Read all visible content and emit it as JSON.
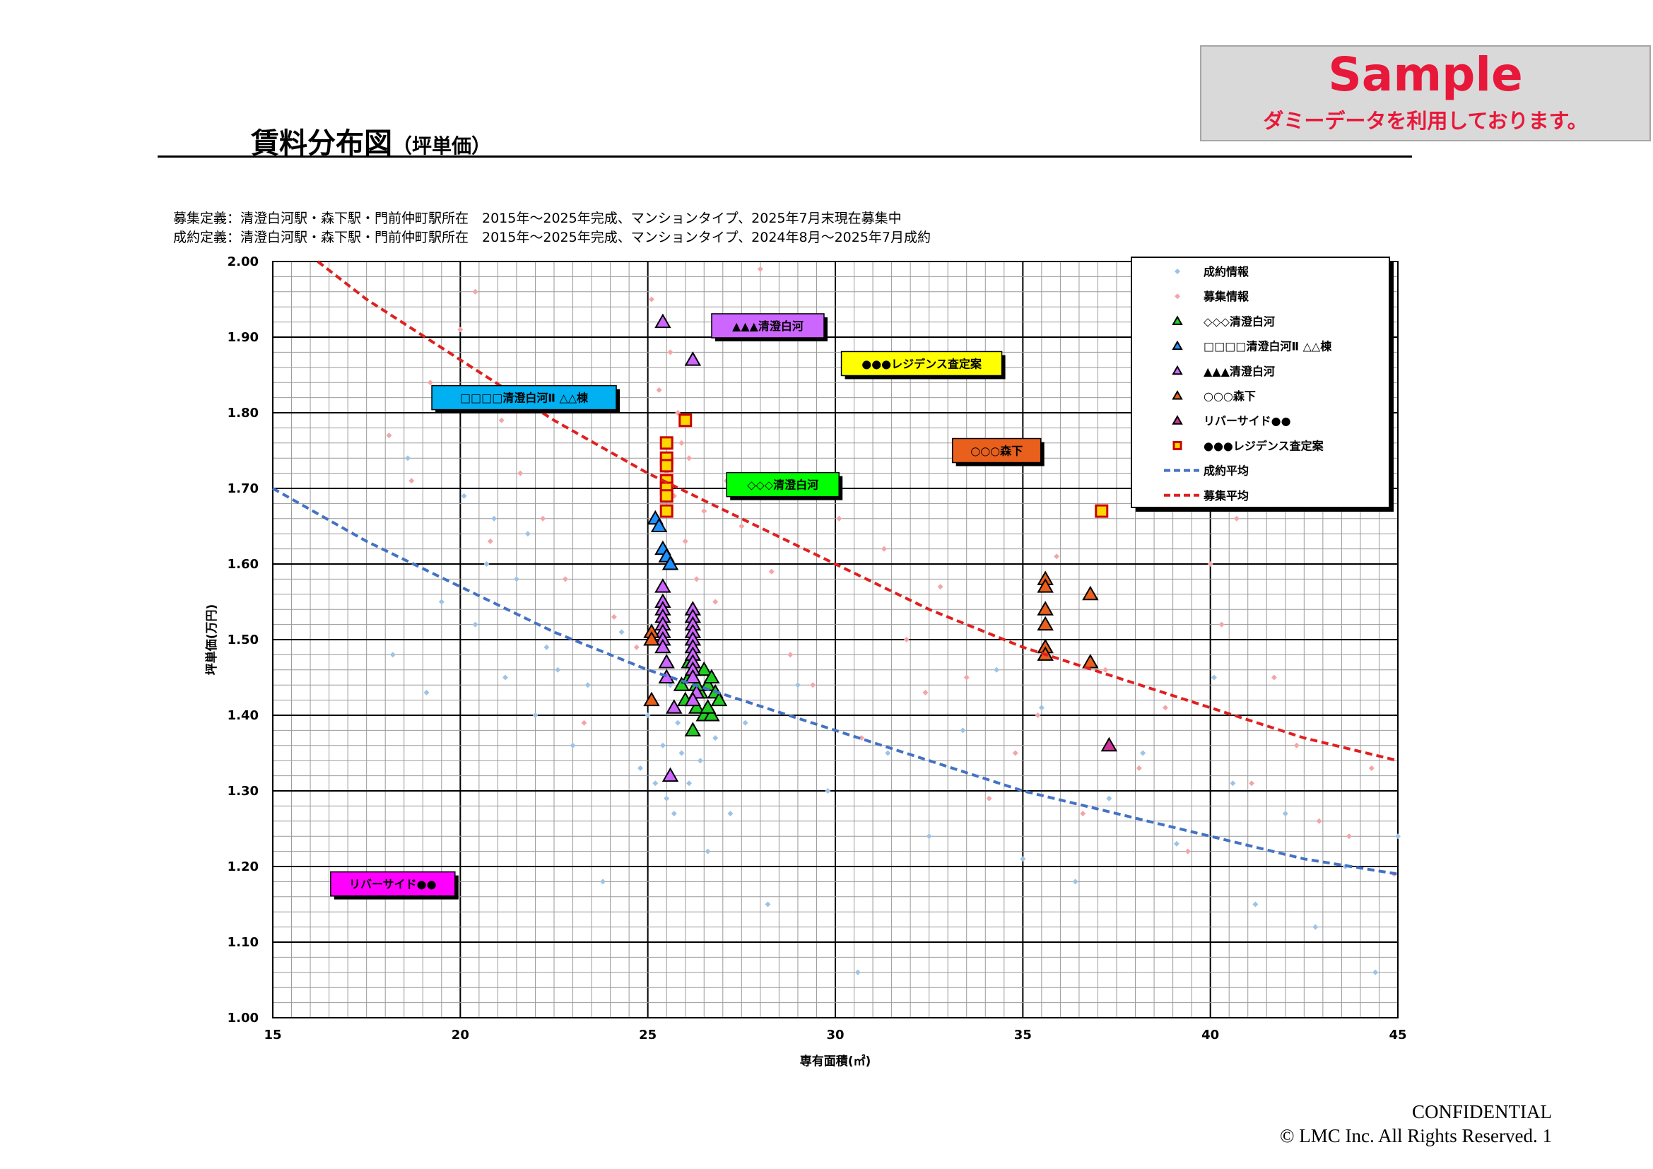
{
  "page": {
    "title": "賃料分布図",
    "title_sub": "（坪単価）",
    "definition_recruit": "募集定義：清澄白河駅・森下駅・門前仲町駅所在　2015年～2025年完成、マンションタイプ、2025年7月末現在募集中",
    "definition_contract": "成約定義：清澄白河駅・森下駅・門前仲町駅所在　2015年～2025年完成、マンションタイプ、2024年8月～2025年7月成約",
    "sample_title": "Sample",
    "sample_note": "ダミーデータを利用しております。",
    "footer_confidential": "CONFIDENTIAL",
    "footer_copyright": "© LMC Inc. All Rights Reserved.  1"
  },
  "chart_data": {
    "type": "scatter",
    "title": "",
    "xlabel": "専有面積(㎡)",
    "ylabel": "坪単価(万円)",
    "xlim": [
      15,
      45
    ],
    "ylim": [
      1.0,
      2.0
    ],
    "xticks": [
      "15",
      "20",
      "25",
      "30",
      "35",
      "40",
      "45"
    ],
    "yticks": [
      "1.00",
      "1.10",
      "1.20",
      "1.30",
      "1.40",
      "1.50",
      "1.60",
      "1.70",
      "1.80",
      "1.90",
      "2.00"
    ],
    "grid": true,
    "legend_position": "top-right",
    "series": [
      {
        "name": "成約情報",
        "marker": "diamond",
        "color": "#9dc3e6",
        "x": [
          18.2,
          18.6,
          19.1,
          19.5,
          20.1,
          20.4,
          20.7,
          20.9,
          21.2,
          21.5,
          21.8,
          22.0,
          22.3,
          22.6,
          23.0,
          23.4,
          23.8,
          24.3,
          24.8,
          25.0,
          25.2,
          25.4,
          25.5,
          25.6,
          25.7,
          25.8,
          25.9,
          26.0,
          26.1,
          26.2,
          26.4,
          26.6,
          26.8,
          27.2,
          27.6,
          28.2,
          29.0,
          29.8,
          30.6,
          31.4,
          32.5,
          33.4,
          34.3,
          35.0,
          35.5,
          36.4,
          37.3,
          38.2,
          39.1,
          40.1,
          40.6,
          41.2,
          42.0,
          42.8,
          43.6,
          44.4,
          45.0
        ],
        "y": [
          1.48,
          1.74,
          1.43,
          1.55,
          1.69,
          1.52,
          1.6,
          1.66,
          1.45,
          1.58,
          1.64,
          1.4,
          1.49,
          1.46,
          1.36,
          1.44,
          1.18,
          1.51,
          1.33,
          1.4,
          1.31,
          1.36,
          1.29,
          1.44,
          1.27,
          1.39,
          1.35,
          1.42,
          1.31,
          1.38,
          1.34,
          1.22,
          1.37,
          1.27,
          1.39,
          1.15,
          1.44,
          1.3,
          1.06,
          1.35,
          1.24,
          1.38,
          1.46,
          1.21,
          1.41,
          1.18,
          1.29,
          1.35,
          1.23,
          1.45,
          1.31,
          1.15,
          1.27,
          1.12,
          1.2,
          1.06,
          1.24
        ]
      },
      {
        "name": "募集情報",
        "marker": "diamond",
        "color": "#f4a5a5",
        "x": [
          18.1,
          18.7,
          19.2,
          20.0,
          20.4,
          20.8,
          21.1,
          21.6,
          22.2,
          22.8,
          23.3,
          24.1,
          24.7,
          25.1,
          25.3,
          25.5,
          25.6,
          25.7,
          25.8,
          25.9,
          26.0,
          26.1,
          26.3,
          26.5,
          26.8,
          27.1,
          27.5,
          28.0,
          28.3,
          28.8,
          29.4,
          30.1,
          30.7,
          31.3,
          31.9,
          32.4,
          32.8,
          33.5,
          34.1,
          34.8,
          35.4,
          35.9,
          36.6,
          37.2,
          38.1,
          38.8,
          39.4,
          40.0,
          40.3,
          40.7,
          41.1,
          41.7,
          42.3,
          42.9,
          43.7,
          44.3,
          44.9
        ],
        "y": [
          1.77,
          1.71,
          1.84,
          1.91,
          1.96,
          1.63,
          1.79,
          1.72,
          1.66,
          1.58,
          1.39,
          1.53,
          1.49,
          1.95,
          1.83,
          1.72,
          1.88,
          1.69,
          1.8,
          1.76,
          1.63,
          1.74,
          1.58,
          1.67,
          1.55,
          1.71,
          1.65,
          1.99,
          1.59,
          1.48,
          1.44,
          1.66,
          1.37,
          1.62,
          1.5,
          1.43,
          1.57,
          1.45,
          1.29,
          1.35,
          1.4,
          1.61,
          1.27,
          1.46,
          1.33,
          1.41,
          1.22,
          1.6,
          1.52,
          1.66,
          1.31,
          1.45,
          1.36,
          1.26,
          1.24,
          1.33,
          1.19
        ]
      },
      {
        "name": "◇◇◇清澄白河",
        "marker": "triangle",
        "color": "#22cc22",
        "x": [
          25.9,
          26.0,
          26.1,
          26.2,
          26.3,
          26.4,
          26.5,
          26.5,
          26.6,
          26.6,
          26.7,
          26.7,
          26.8,
          26.9,
          26.1,
          26.3,
          26.6
        ],
        "y": [
          1.44,
          1.42,
          1.45,
          1.38,
          1.41,
          1.43,
          1.46,
          1.4,
          1.44,
          1.41,
          1.45,
          1.4,
          1.43,
          1.42,
          1.47,
          1.44,
          1.41
        ]
      },
      {
        "name": "□□□□清澄白河Ⅱ △△棟",
        "marker": "triangle",
        "color": "#1e90ff",
        "x": [
          25.2,
          25.3,
          25.4,
          25.5,
          25.6
        ],
        "y": [
          1.66,
          1.65,
          1.62,
          1.61,
          1.6
        ]
      },
      {
        "name": "▲▲▲清澄白河",
        "marker": "triangle",
        "color": "#cc66ff",
        "x": [
          25.4,
          25.4,
          25.4,
          25.4,
          25.4,
          25.4,
          25.4,
          25.4,
          25.5,
          25.5,
          26.2,
          26.2,
          26.2,
          26.2,
          26.2,
          26.2,
          26.2,
          26.2,
          26.2,
          26.2,
          26.2,
          26.3,
          25.4,
          26.2,
          25.7,
          25.6
        ],
        "y": [
          1.92,
          1.57,
          1.55,
          1.54,
          1.53,
          1.52,
          1.51,
          1.5,
          1.47,
          1.45,
          1.87,
          1.54,
          1.53,
          1.52,
          1.51,
          1.5,
          1.49,
          1.48,
          1.47,
          1.46,
          1.45,
          1.43,
          1.49,
          1.42,
          1.41,
          1.32
        ]
      },
      {
        "name": "○○○森下",
        "marker": "triangle",
        "color": "#e8601c",
        "x": [
          25.1,
          25.1,
          25.1,
          35.6,
          35.6,
          35.6,
          35.6,
          35.6,
          35.6,
          36.8,
          36.8
        ],
        "y": [
          1.51,
          1.5,
          1.42,
          1.58,
          1.57,
          1.54,
          1.52,
          1.49,
          1.48,
          1.56,
          1.47
        ]
      },
      {
        "name": "リバーサイド●●",
        "marker": "triangle",
        "color": "#cc3399",
        "x": [
          37.3
        ],
        "y": [
          1.36
        ]
      },
      {
        "name": "●●●レジデンス査定案",
        "marker": "square",
        "color": "#ffd700",
        "x": [
          25.5,
          25.5,
          25.5,
          25.5,
          25.5,
          25.5,
          25.5,
          26.0,
          37.1
        ],
        "y": [
          1.76,
          1.74,
          1.73,
          1.71,
          1.7,
          1.69,
          1.67,
          1.79,
          1.67
        ]
      }
    ],
    "trendlines": [
      {
        "name": "成約平均",
        "color": "#4472c4",
        "x": [
          15,
          17.5,
          20,
          22.5,
          25,
          27.5,
          30,
          32.5,
          35,
          37.5,
          40,
          42.5,
          45
        ],
        "y": [
          1.7,
          1.63,
          1.57,
          1.51,
          1.46,
          1.42,
          1.38,
          1.34,
          1.3,
          1.27,
          1.24,
          1.21,
          1.19
        ]
      },
      {
        "name": "募集平均",
        "color": "#e02020",
        "x": [
          16.2,
          17.5,
          20,
          22.5,
          25,
          27.5,
          30,
          32.5,
          35,
          37.5,
          40,
          42.5,
          45
        ],
        "y": [
          2.0,
          1.95,
          1.87,
          1.79,
          1.72,
          1.66,
          1.6,
          1.54,
          1.49,
          1.45,
          1.41,
          1.37,
          1.34
        ]
      }
    ],
    "annotations": [
      {
        "text": "□□□□清澄白河Ⅱ △△棟",
        "color": "#00b0f0",
        "anchor_x": 21.7,
        "anchor_y": 1.82
      },
      {
        "text": "▲▲▲清澄白河",
        "color": "#cc66ff",
        "anchor_x": 28.2,
        "anchor_y": 1.915
      },
      {
        "text": "●●●レジデンス査定案",
        "color": "#ffff00",
        "anchor_x": 32.3,
        "anchor_y": 1.865
      },
      {
        "text": "◇◇◇清澄白河",
        "color": "#00ff00",
        "anchor_x": 28.6,
        "anchor_y": 1.705
      },
      {
        "text": "○○○森下",
        "color": "#e8601c",
        "anchor_x": 34.3,
        "anchor_y": 1.75
      },
      {
        "text": "リバーサイド●●",
        "color": "#ff00ff",
        "anchor_x": 18.2,
        "anchor_y": 1.177
      }
    ],
    "legend_lines": [
      {
        "name": "成約平均",
        "color": "#4472c4"
      },
      {
        "name": "募集平均",
        "color": "#e02020"
      }
    ]
  }
}
